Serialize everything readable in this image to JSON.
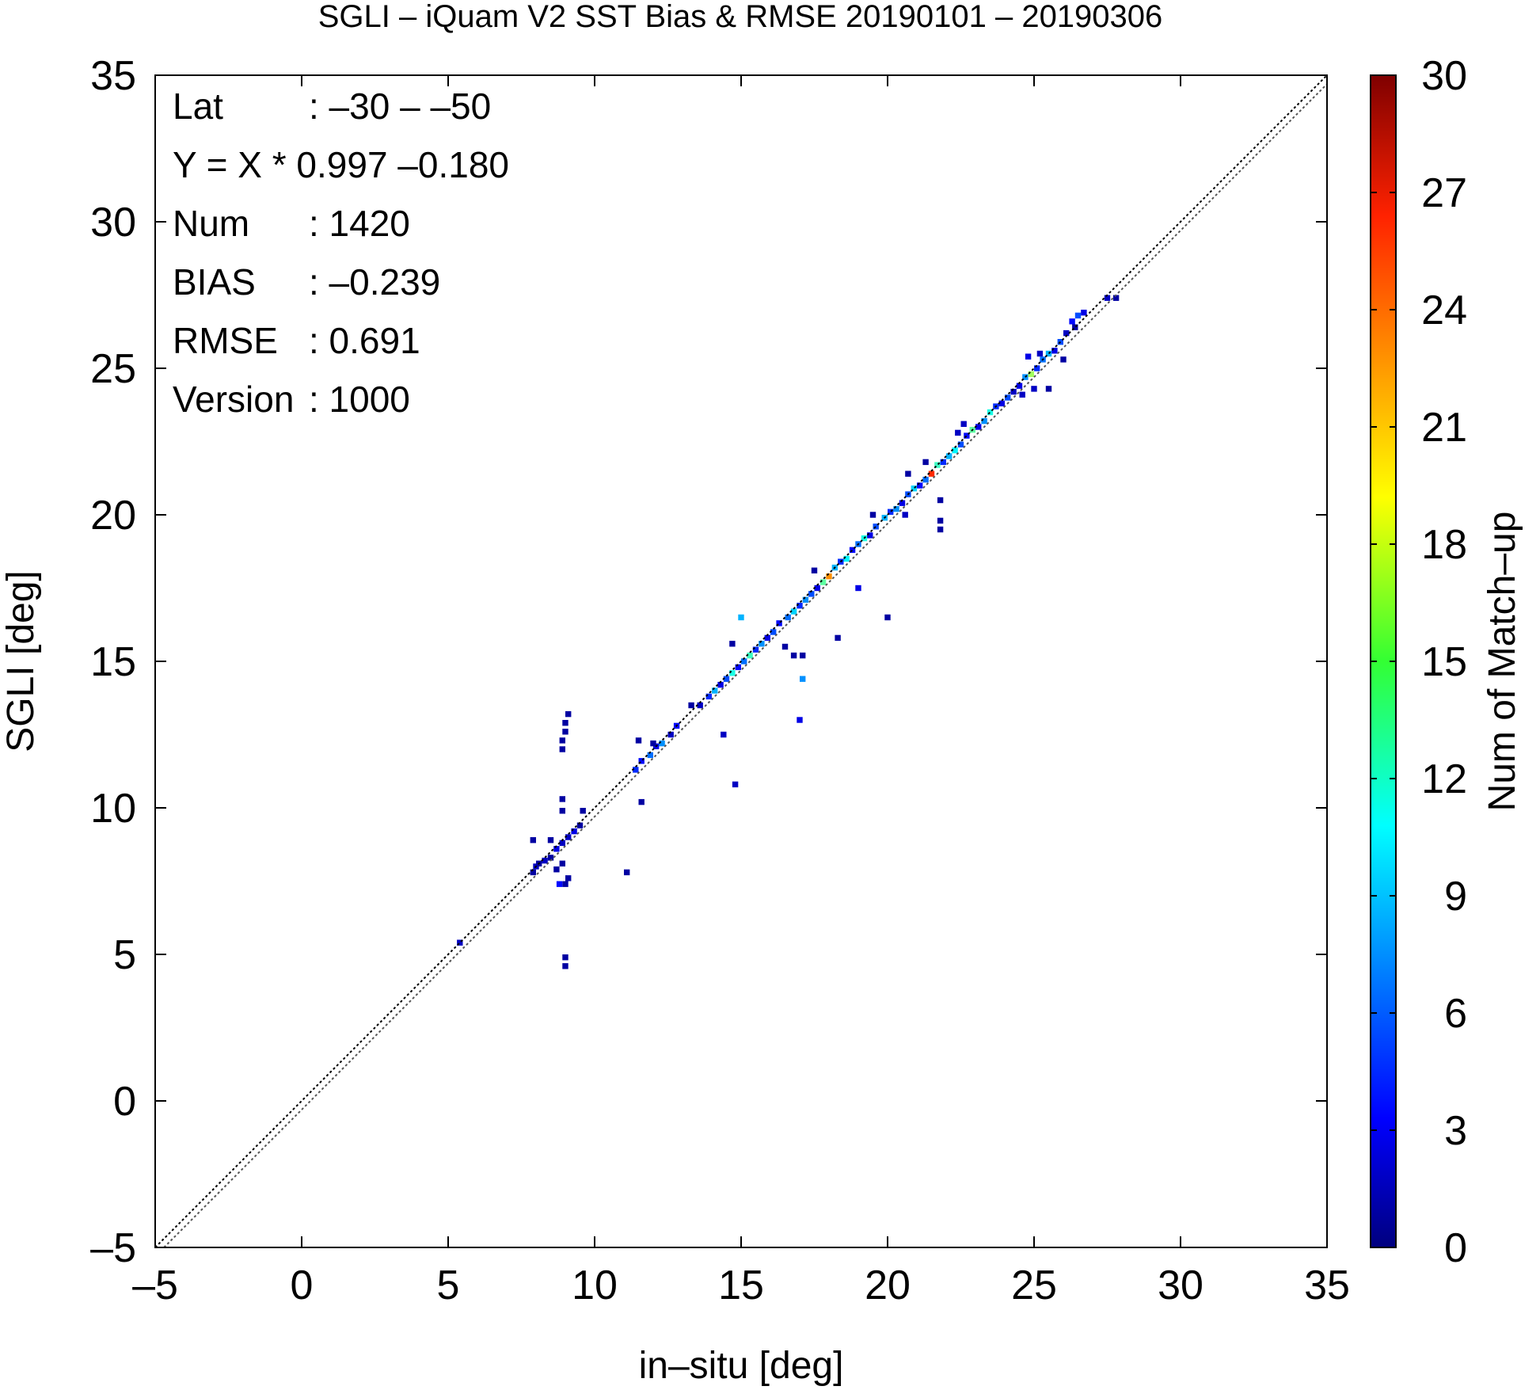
{
  "chart_data": {
    "type": "heatmap",
    "title": "SGLI – iQuam V2 SST Bias & RMSE 20190101 – 20190306",
    "xlabel": "in–situ [deg]",
    "ylabel": "SGLI [deg]",
    "xlim": [
      -5,
      35
    ],
    "ylim": [
      -5,
      35
    ],
    "x_ticks": [
      "–5",
      "0",
      "5",
      "10",
      "15",
      "20",
      "25",
      "30",
      "35"
    ],
    "y_ticks": [
      "–5",
      "0",
      "5",
      "10",
      "15",
      "20",
      "25",
      "30",
      "35"
    ],
    "reference_line": "Y = X",
    "stats": [
      {
        "label": "Lat",
        "value": ": –30 – –50"
      },
      {
        "label": "Y = X * 0.997 –0.180",
        "value": ""
      },
      {
        "label": "Num",
        "value": ": 1420"
      },
      {
        "label": "BIAS",
        "value": ": –0.239"
      },
      {
        "label": "RMSE",
        "value": ": 0.691"
      },
      {
        "label": "Version",
        "value": ": 1000"
      }
    ],
    "colorbar": {
      "label": "Num of Match–up",
      "range": [
        0,
        30
      ],
      "ticks": [
        "0",
        "3",
        "6",
        "9",
        "12",
        "15",
        "18",
        "21",
        "24",
        "27",
        "30"
      ]
    },
    "cells": [
      [
        5.4,
        5.4,
        2
      ],
      [
        9.0,
        4.6,
        1
      ],
      [
        9.0,
        4.9,
        1
      ],
      [
        7.9,
        7.8,
        1
      ],
      [
        8.0,
        8.0,
        2
      ],
      [
        8.1,
        8.1,
        1
      ],
      [
        8.3,
        8.2,
        2
      ],
      [
        8.5,
        8.3,
        1
      ],
      [
        8.7,
        8.6,
        3
      ],
      [
        8.9,
        8.8,
        2
      ],
      [
        9.1,
        9.0,
        2
      ],
      [
        9.3,
        9.2,
        3
      ],
      [
        9.5,
        9.4,
        1
      ],
      [
        7.9,
        8.9,
        1
      ],
      [
        8.5,
        8.9,
        1
      ],
      [
        8.9,
        8.1,
        1
      ],
      [
        9.0,
        7.4,
        1
      ],
      [
        9.1,
        7.6,
        1
      ],
      [
        8.8,
        7.4,
        4
      ],
      [
        8.7,
        7.9,
        1
      ],
      [
        9.6,
        9.9,
        1
      ],
      [
        8.9,
        12.0,
        1
      ],
      [
        8.9,
        12.3,
        1
      ],
      [
        9.0,
        12.6,
        1
      ],
      [
        9.0,
        12.9,
        1
      ],
      [
        9.1,
        13.2,
        1
      ],
      [
        8.9,
        10.3,
        1
      ],
      [
        8.9,
        9.9,
        1
      ],
      [
        11.1,
        7.8,
        1
      ],
      [
        11.6,
        10.2,
        1
      ],
      [
        11.4,
        11.3,
        5
      ],
      [
        11.6,
        11.6,
        4
      ],
      [
        11.9,
        11.8,
        7
      ],
      [
        12.1,
        12.1,
        3
      ],
      [
        12.3,
        12.2,
        8
      ],
      [
        12.6,
        12.5,
        2
      ],
      [
        12.8,
        12.8,
        4
      ],
      [
        11.5,
        12.3,
        1
      ],
      [
        12.0,
        12.2,
        1
      ],
      [
        13.3,
        13.5,
        1
      ],
      [
        13.6,
        13.5,
        2
      ],
      [
        13.9,
        13.8,
        5
      ],
      [
        14.1,
        14.0,
        9
      ],
      [
        14.3,
        14.2,
        3
      ],
      [
        14.5,
        14.4,
        6
      ],
      [
        14.7,
        14.6,
        12
      ],
      [
        14.9,
        14.8,
        4
      ],
      [
        15.1,
        15.0,
        7
      ],
      [
        15.3,
        15.2,
        13
      ],
      [
        15.5,
        15.4,
        5
      ],
      [
        15.7,
        15.6,
        8
      ],
      [
        14.7,
        15.6,
        1
      ],
      [
        15.0,
        16.5,
        9
      ],
      [
        14.8,
        10.8,
        2
      ],
      [
        14.4,
        12.5,
        2
      ],
      [
        15.9,
        15.8,
        3
      ],
      [
        16.1,
        16.0,
        6
      ],
      [
        16.3,
        16.3,
        4
      ],
      [
        16.6,
        16.5,
        7
      ],
      [
        16.8,
        16.7,
        10
      ],
      [
        17.0,
        16.9,
        5
      ],
      [
        17.2,
        17.1,
        8
      ],
      [
        17.4,
        17.3,
        6
      ],
      [
        17.6,
        17.5,
        3
      ],
      [
        17.8,
        17.7,
        14
      ],
      [
        18.0,
        17.9,
        22
      ],
      [
        18.2,
        18.2,
        9
      ],
      [
        18.4,
        18.4,
        5
      ],
      [
        18.6,
        18.5,
        11
      ],
      [
        18.8,
        18.8,
        4
      ],
      [
        19.0,
        19.0,
        7
      ],
      [
        19.2,
        19.2,
        12
      ],
      [
        19.4,
        19.3,
        3
      ],
      [
        19.6,
        19.6,
        6
      ],
      [
        16.5,
        15.5,
        1
      ],
      [
        16.8,
        15.2,
        1
      ],
      [
        17.1,
        15.2,
        1
      ],
      [
        17.1,
        14.4,
        8
      ],
      [
        17.0,
        13.0,
        3
      ],
      [
        18.3,
        15.8,
        1
      ],
      [
        19.0,
        17.5,
        3
      ],
      [
        17.5,
        18.1,
        1
      ],
      [
        20.0,
        16.5,
        1
      ],
      [
        19.5,
        20.0,
        1
      ],
      [
        19.9,
        19.9,
        9
      ],
      [
        20.1,
        20.1,
        5
      ],
      [
        20.3,
        20.2,
        8
      ],
      [
        20.5,
        20.4,
        3
      ],
      [
        20.7,
        20.7,
        6
      ],
      [
        20.9,
        20.9,
        10
      ],
      [
        21.1,
        21.0,
        4
      ],
      [
        21.3,
        21.2,
        7
      ],
      [
        21.5,
        21.4,
        25
      ],
      [
        21.7,
        21.7,
        13
      ],
      [
        21.9,
        21.8,
        5
      ],
      [
        22.1,
        22.0,
        9
      ],
      [
        22.3,
        22.2,
        11
      ],
      [
        22.5,
        22.4,
        6
      ],
      [
        22.7,
        22.7,
        4
      ],
      [
        22.9,
        22.9,
        14
      ],
      [
        23.1,
        23.0,
        3
      ],
      [
        23.3,
        23.2,
        8
      ],
      [
        23.5,
        23.5,
        12
      ],
      [
        23.7,
        23.7,
        5
      ],
      [
        23.9,
        23.8,
        3
      ],
      [
        24.1,
        24.0,
        6
      ],
      [
        24.3,
        24.2,
        2
      ],
      [
        20.7,
        21.4,
        1
      ],
      [
        21.3,
        21.8,
        1
      ],
      [
        21.8,
        20.5,
        1
      ],
      [
        21.8,
        19.5,
        1
      ],
      [
        21.8,
        19.8,
        1
      ],
      [
        20.6,
        20.0,
        2
      ],
      [
        22.4,
        22.8,
        2
      ],
      [
        22.6,
        23.1,
        2
      ],
      [
        24.5,
        24.4,
        3
      ],
      [
        24.7,
        24.7,
        8
      ],
      [
        24.9,
        24.8,
        16
      ],
      [
        25.1,
        25.0,
        5
      ],
      [
        25.3,
        25.3,
        7
      ],
      [
        25.5,
        25.5,
        9
      ],
      [
        25.7,
        25.6,
        3
      ],
      [
        25.9,
        25.9,
        6
      ],
      [
        24.8,
        25.4,
        3
      ],
      [
        25.2,
        25.5,
        2
      ],
      [
        26.0,
        25.3,
        1
      ],
      [
        25.0,
        24.3,
        2
      ],
      [
        24.6,
        24.1,
        2
      ],
      [
        25.5,
        24.3,
        1
      ],
      [
        26.1,
        26.2,
        2
      ],
      [
        26.3,
        26.6,
        4
      ],
      [
        26.5,
        26.8,
        6
      ],
      [
        26.7,
        26.9,
        3
      ],
      [
        26.4,
        26.4,
        1
      ],
      [
        27.5,
        27.4,
        2
      ],
      [
        27.8,
        27.4,
        1
      ]
    ]
  }
}
